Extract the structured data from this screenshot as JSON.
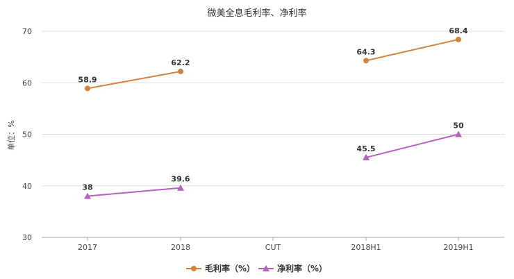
{
  "chart_data": {
    "type": "line",
    "title": "微美全息毛利率、净利率",
    "ylabel": "单位：%",
    "xlabel": "",
    "categories": [
      "2017",
      "2018",
      "CUT",
      "2018H1",
      "2019H1"
    ],
    "ylim": [
      30,
      70
    ],
    "yticks": [
      30,
      40,
      50,
      60,
      70
    ],
    "grid": true,
    "legend_position": "bottom",
    "series": [
      {
        "name": "毛利率（%）",
        "color": "#D4813B",
        "marker": "circle",
        "values": [
          58.9,
          62.2,
          null,
          64.3,
          68.4
        ],
        "labels": [
          "58.9",
          "62.2",
          "",
          "64.3",
          "68.4"
        ]
      },
      {
        "name": "净利率（%）",
        "color": "#B65FC0",
        "marker": "triangle",
        "values": [
          38,
          39.6,
          null,
          45.5,
          50
        ],
        "labels": [
          "38",
          "39.6",
          "",
          "45.5",
          "50"
        ]
      }
    ]
  }
}
